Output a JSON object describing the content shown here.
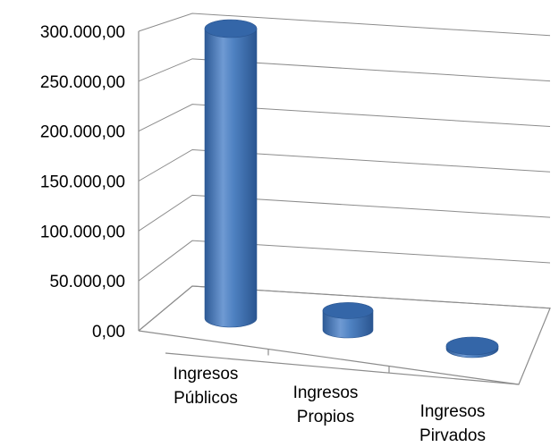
{
  "chart_data": {
    "type": "bar",
    "style": "3d-cylinder",
    "title": "",
    "xlabel": "",
    "ylabel": "",
    "categories": [
      [
        "Ingresos",
        "Públicos"
      ],
      [
        "Ingresos",
        "Propios"
      ],
      [
        "Ingresos",
        "Pirvados"
      ]
    ],
    "values": [
      300000,
      20000,
      600
    ],
    "ylim": [
      0,
      300000
    ],
    "yticks": [
      {
        "value": 0,
        "label": "0,00"
      },
      {
        "value": 50000,
        "label": "50.000,00"
      },
      {
        "value": 100000,
        "label": "100.000,00"
      },
      {
        "value": 150000,
        "label": "150.000,00"
      },
      {
        "value": 200000,
        "label": "200.000,00"
      },
      {
        "value": 250000,
        "label": "250.000,00"
      },
      {
        "value": 300000,
        "label": "300.000,00"
      }
    ],
    "grid": true,
    "legend": "none",
    "bar_color": "#4a7ebb",
    "bar_top_color": "#3466a8"
  }
}
